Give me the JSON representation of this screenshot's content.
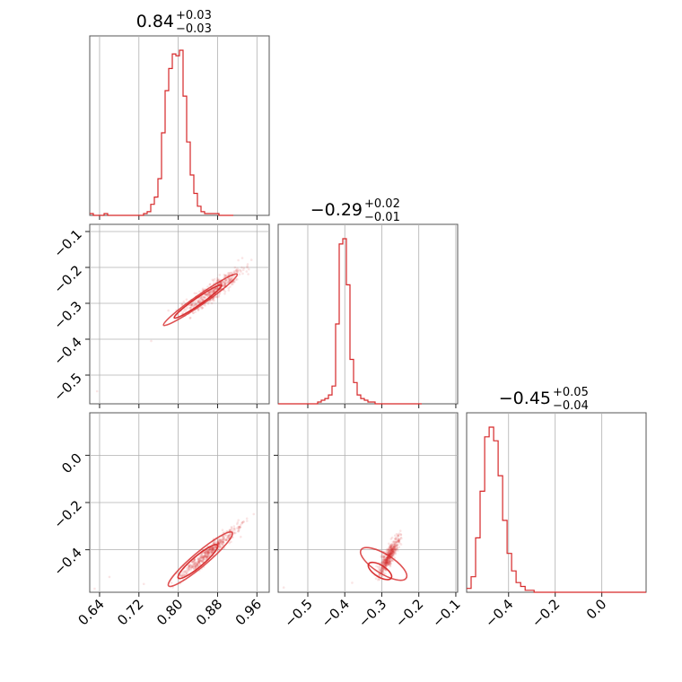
{
  "colors": {
    "series": "#d62728",
    "frame": "#555555",
    "grid": "#b0b0b0"
  },
  "chart_data": [
    {
      "type": "histogram",
      "panel": "0-0",
      "title": {
        "median": "0.84",
        "plus": "+0.03",
        "minus": "−0.03"
      },
      "xlim": [
        0.62,
        0.985
      ],
      "xticks": [
        0.64,
        0.72,
        0.8,
        0.88,
        0.96
      ],
      "xtick_labels": [
        "0.64",
        "0.72",
        "0.80",
        "0.88",
        "0.96"
      ],
      "bins": {
        "start": 0.62,
        "width": 0.0073,
        "counts": [
          1,
          0,
          0,
          0,
          1,
          0,
          0,
          0,
          0,
          0,
          0,
          0,
          0,
          0,
          0,
          1,
          2,
          6,
          10,
          20,
          45,
          68,
          80,
          88,
          87,
          90,
          65,
          40,
          22,
          12,
          5,
          2,
          1,
          1,
          1,
          1,
          0,
          0,
          0,
          0
        ]
      },
      "grid": true
    },
    {
      "type": "histogram",
      "panel": "1-1",
      "title": {
        "median": "−0.29",
        "plus": "+0.02",
        "minus": "−0.01"
      },
      "xlim": [
        -0.58,
        -0.095
      ],
      "xticks": [
        -0.5,
        -0.4,
        -0.3,
        -0.2,
        -0.1
      ],
      "xtick_labels": [
        "−0.5",
        "−0.4",
        "−0.3",
        "−0.2",
        "−0.1"
      ],
      "bins": {
        "start": -0.58,
        "width": 0.0097,
        "counts": [
          0,
          0,
          0,
          0,
          0,
          0,
          0,
          0,
          0,
          0,
          0,
          1,
          2,
          3,
          5,
          10,
          45,
          90,
          93,
          67,
          25,
          12,
          5,
          3,
          2,
          1,
          1,
          0,
          0,
          0,
          0,
          0,
          0,
          0,
          0,
          0,
          0,
          0,
          0,
          0
        ]
      },
      "grid": true
    },
    {
      "type": "histogram",
      "panel": "2-2",
      "title": {
        "median": "−0.45",
        "plus": "+0.05",
        "minus": "−0.04"
      },
      "xlim": [
        -0.58,
        0.19
      ],
      "xticks": [
        -0.4,
        -0.2,
        0.0
      ],
      "xtick_labels": [
        "−0.4",
        "−0.2",
        "0.0"
      ],
      "bins": {
        "start": -0.58,
        "width": 0.0193,
        "counts": [
          2,
          8,
          28,
          52,
          80,
          85,
          78,
          60,
          37,
          20,
          11,
          5,
          3,
          1,
          1,
          0,
          0,
          0,
          0,
          0,
          0,
          0,
          0,
          0,
          0,
          0,
          0,
          0,
          0,
          0,
          0,
          0,
          0,
          0,
          0,
          0,
          0,
          0,
          0,
          0
        ]
      },
      "grid": true
    },
    {
      "type": "scatter",
      "panel": "1-0",
      "xlim": [
        0.62,
        0.985
      ],
      "ylim": [
        -0.58,
        -0.08
      ],
      "yticks": [
        -0.1,
        -0.2,
        -0.3,
        -0.4,
        -0.5
      ],
      "ytick_labels": [
        "−0.1",
        "−0.2",
        "−0.3",
        "−0.4",
        "−0.5"
      ],
      "trend": {
        "center": [
          0.84,
          -0.295
        ],
        "slope": 0.95,
        "x_range": [
          0.78,
          0.96
        ],
        "spread": 0.013
      },
      "outliers": [
        [
          0.745,
          -0.405
        ],
        [
          0.635,
          -0.545
        ],
        [
          0.78,
          -0.32
        ]
      ],
      "contours": [
        {
          "cx": 0.84,
          "cy": -0.295,
          "rx": 0.045,
          "ry": 0.008,
          "level": 1
        },
        {
          "cx": 0.845,
          "cy": -0.29,
          "rx": 0.07,
          "ry": 0.011,
          "level": 2
        }
      ],
      "grid": true
    },
    {
      "type": "scatter",
      "panel": "2-0",
      "xlim": [
        0.62,
        0.985
      ],
      "ylim": [
        -0.58,
        0.18
      ],
      "yticks": [
        0.0,
        -0.2,
        -0.4
      ],
      "ytick_labels": [
        "0.0",
        "−0.2",
        "−0.4"
      ],
      "trend": {
        "center": [
          0.84,
          -0.45
        ],
        "slope": 1.75,
        "x_range": [
          0.77,
          0.96
        ],
        "spread": 0.015
      },
      "outliers": [
        [
          0.66,
          -0.515
        ],
        [
          0.73,
          -0.545
        ],
        [
          0.63,
          -0.565
        ]
      ],
      "contours": [
        {
          "cx": 0.84,
          "cy": -0.45,
          "rx": 0.04,
          "ry": 0.012,
          "level": 1
        },
        {
          "cx": 0.845,
          "cy": -0.44,
          "rx": 0.065,
          "ry": 0.016,
          "level": 2
        }
      ],
      "grid": true
    },
    {
      "type": "scatter",
      "panel": "2-1",
      "xlim": [
        -0.58,
        -0.095
      ],
      "ylim": [
        -0.58,
        0.18
      ],
      "trend": {
        "center": [
          -0.29,
          -0.45
        ],
        "slope": 2.5,
        "x_range": [
          -0.32,
          -0.24
        ],
        "spread": 0.02
      },
      "outliers": [
        [
          -0.565,
          -0.56
        ],
        [
          -0.38,
          -0.54
        ]
      ],
      "contours": [
        {
          "cx": -0.305,
          "cy": -0.49,
          "rx": 0.012,
          "ry": 0.04,
          "level": 1
        },
        {
          "cx": -0.295,
          "cy": -0.46,
          "rx": 0.02,
          "ry": 0.08,
          "level": 2
        }
      ],
      "grid": true
    }
  ]
}
